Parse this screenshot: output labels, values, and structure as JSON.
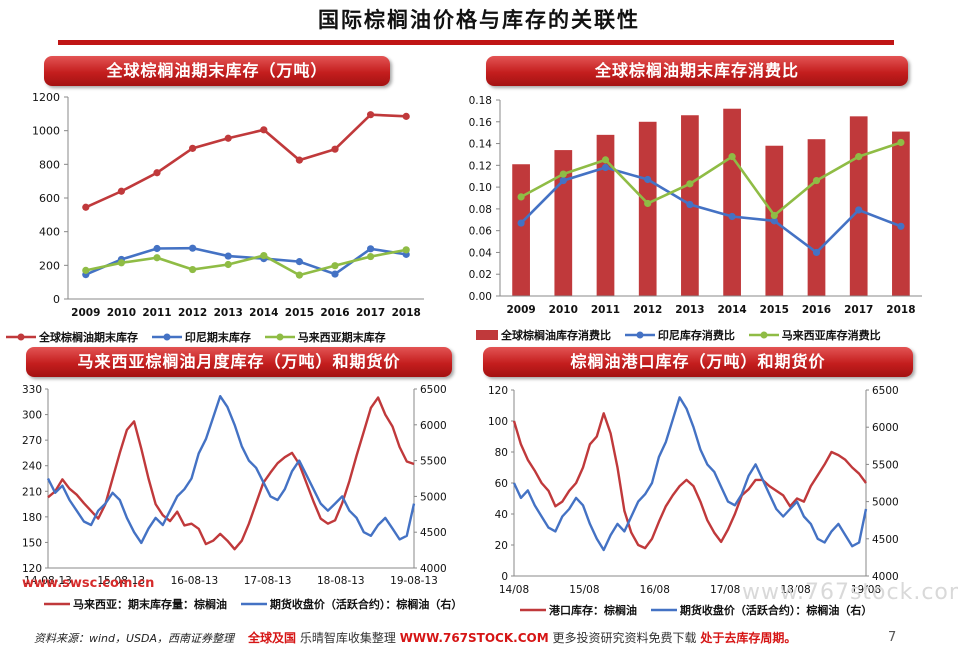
{
  "page": {
    "title": "国际棕榈油价格与库存的关联性",
    "footer": "资料来源：wind，USDA，西南证券整理",
    "page_number": "7",
    "site_url": "www.swsc.com.cn",
    "watermark_red": "全球及国",
    "watermark_gray": "乐晴智库收集整理",
    "watermark_url": "WWW.767STOCK.COM",
    "watermark_tail": "更多投资研究资料免费下载",
    "watermark_red2": "处于去库存周期。",
    "watermark_right": "www.767stock.com"
  },
  "colors": {
    "red": "#c0393b",
    "blue": "#4472c4",
    "green": "#8fbc45",
    "bar": "#c0393b",
    "banner": "#c41e1e"
  },
  "chart_data": [
    {
      "id": "chart1",
      "type": "line",
      "title": "全球棕榈油期末库存（万吨）",
      "x": [
        "2009",
        "2010",
        "2011",
        "2012",
        "2013",
        "2014",
        "2015",
        "2016",
        "2017",
        "2018"
      ],
      "ylim": [
        0,
        1200
      ],
      "yticks": [
        0,
        200,
        400,
        600,
        800,
        1000,
        1200
      ],
      "series": [
        {
          "name": "全球棕榈油期末库存",
          "color": "#c0393b",
          "values": [
            545,
            640,
            750,
            895,
            955,
            1005,
            825,
            890,
            1095,
            1085
          ]
        },
        {
          "name": "印尼期末库存",
          "color": "#4472c4",
          "values": [
            145,
            235,
            300,
            302,
            255,
            240,
            222,
            148,
            298,
            265
          ]
        },
        {
          "name": "马来西亚期末库存",
          "color": "#8fbc45",
          "values": [
            170,
            215,
            245,
            175,
            205,
            258,
            142,
            198,
            252,
            292
          ]
        }
      ]
    },
    {
      "id": "chart2",
      "type": "bar",
      "title": "全球棕榈油期末库存消费比",
      "categories": [
        "2009",
        "2010",
        "2011",
        "2012",
        "2013",
        "2014",
        "2015",
        "2016",
        "2017",
        "2018"
      ],
      "ylim": [
        0,
        0.18
      ],
      "yticks": [
        "0.00",
        "0.02",
        "0.04",
        "0.06",
        "0.08",
        "0.10",
        "0.12",
        "0.14",
        "0.16",
        "0.18"
      ],
      "bars": {
        "name": "全球棕榈油库存消费比",
        "color": "#c0393b",
        "values": [
          0.121,
          0.134,
          0.148,
          0.16,
          0.166,
          0.172,
          0.138,
          0.144,
          0.165,
          0.151
        ]
      },
      "lines": [
        {
          "name": "印尼库存消费比",
          "color": "#4472c4",
          "values": [
            0.067,
            0.106,
            0.118,
            0.107,
            0.084,
            0.073,
            0.069,
            0.04,
            0.079,
            0.064
          ]
        },
        {
          "name": "马来西亚库存消费比",
          "color": "#8fbc45",
          "values": [
            0.091,
            0.112,
            0.125,
            0.085,
            0.103,
            0.128,
            0.074,
            0.106,
            0.128,
            0.141
          ]
        }
      ]
    },
    {
      "id": "chart3",
      "type": "line",
      "title": "马来西亚棕榈油月度库存（万吨）和期货价",
      "x_ticks": [
        "14-08-13",
        "15-08-13",
        "16-08-13",
        "17-08-13",
        "18-08-13",
        "19-08-13"
      ],
      "y_left": {
        "lim": [
          120,
          330
        ],
        "ticks": [
          "120",
          "150",
          "180",
          "210",
          "240",
          "270",
          "300",
          "330"
        ]
      },
      "y_right": {
        "lim": [
          4000,
          6500
        ],
        "ticks": [
          "4000",
          "4500",
          "5000",
          "5500",
          "6000",
          "6500"
        ]
      },
      "series": [
        {
          "name": "马来西亚：期末库存量：棕榈油",
          "axis": "left",
          "color": "#c0393b",
          "values": [
            203,
            210,
            224,
            213,
            206,
            196,
            187,
            178,
            195,
            225,
            255,
            282,
            292,
            260,
            225,
            195,
            182,
            175,
            186,
            170,
            172,
            166,
            148,
            152,
            160,
            152,
            142,
            152,
            172,
            196,
            220,
            232,
            243,
            250,
            255,
            242,
            220,
            198,
            178,
            172,
            176,
            196,
            222,
            252,
            280,
            308,
            320,
            300,
            286,
            262,
            245,
            242
          ]
        },
        {
          "name": "期货收盘价（活跃合约）：棕榈油（右）",
          "axis": "right",
          "color": "#4472c4",
          "values": [
            5250,
            5050,
            5150,
            4950,
            4800,
            4650,
            4600,
            4800,
            4900,
            5050,
            4950,
            4700,
            4500,
            4350,
            4550,
            4700,
            4600,
            4800,
            5000,
            5100,
            5250,
            5600,
            5800,
            6100,
            6400,
            6250,
            6000,
            5700,
            5500,
            5400,
            5200,
            5000,
            4950,
            5100,
            5350,
            5500,
            5300,
            5100,
            4900,
            4800,
            4900,
            5000,
            4800,
            4700,
            4500,
            4450,
            4600,
            4700,
            4550,
            4400,
            4450,
            4900
          ]
        }
      ]
    },
    {
      "id": "chart4",
      "type": "line",
      "title": "棕榈油港口库存（万吨）和期货价",
      "x_ticks": [
        "14/08",
        "15/08",
        "16/08",
        "17/08",
        "18/08",
        "19/08"
      ],
      "y_left": {
        "lim": [
          0,
          120
        ],
        "ticks": [
          "0",
          "20",
          "40",
          "60",
          "80",
          "100",
          "120"
        ]
      },
      "y_right": {
        "lim": [
          4000,
          6500
        ],
        "ticks": [
          "4000",
          "4500",
          "5000",
          "5500",
          "6000",
          "6500"
        ]
      },
      "series": [
        {
          "name": "港口库存：棕榈油",
          "axis": "left",
          "color": "#c0393b",
          "values": [
            100,
            85,
            75,
            68,
            60,
            55,
            45,
            48,
            55,
            60,
            70,
            85,
            90,
            105,
            92,
            70,
            42,
            28,
            20,
            18,
            24,
            35,
            45,
            52,
            58,
            62,
            58,
            48,
            36,
            28,
            22,
            30,
            40,
            52,
            56,
            62,
            62,
            58,
            55,
            52,
            45,
            50,
            48,
            58,
            65,
            72,
            80,
            78,
            75,
            70,
            66,
            60
          ]
        },
        {
          "name": "期货收盘价（活跃合约）：棕榈油（右）",
          "axis": "right",
          "color": "#4472c4",
          "values": [
            5250,
            5050,
            5150,
            4950,
            4800,
            4650,
            4600,
            4800,
            4900,
            5050,
            4950,
            4700,
            4500,
            4350,
            4550,
            4700,
            4600,
            4800,
            5000,
            5100,
            5250,
            5600,
            5800,
            6100,
            6400,
            6250,
            6000,
            5700,
            5500,
            5400,
            5200,
            5000,
            4950,
            5100,
            5350,
            5500,
            5300,
            5100,
            4900,
            4800,
            4900,
            5000,
            4800,
            4700,
            4500,
            4450,
            4600,
            4700,
            4550,
            4400,
            4450,
            4900
          ]
        }
      ]
    }
  ]
}
